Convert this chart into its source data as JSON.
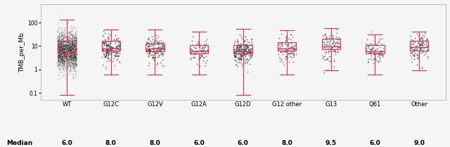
{
  "categories": [
    "WT",
    "G12C",
    "G12V",
    "G12A",
    "G12D",
    "G12 other",
    "G13",
    "Q61",
    "Other"
  ],
  "medians": [
    6.0,
    8.0,
    8.0,
    6.0,
    6.0,
    8.0,
    9.5,
    6.0,
    9.0
  ],
  "ylabel": "TMB_per_Mb",
  "xlabel_median": "Median",
  "box_color": "#d04060",
  "beeswarm_color": "#222222",
  "background_color": "#f5f5f5",
  "ylim_log": [
    0.05,
    600
  ],
  "yticks": [
    0.1,
    1,
    10,
    100
  ],
  "box_stats": {
    "WT": {
      "q1": 5.0,
      "q3": 17.0,
      "median": 6.0,
      "whislo": 0.08,
      "whishi": 130.0
    },
    "G12C": {
      "q1": 6.5,
      "q3": 17.0,
      "median": 8.0,
      "whislo": 0.6,
      "whishi": 50.0
    },
    "G12V": {
      "q1": 6.0,
      "q3": 13.0,
      "median": 8.0,
      "whislo": 0.6,
      "whishi": 50.0
    },
    "G12A": {
      "q1": 5.0,
      "q3": 11.0,
      "median": 6.0,
      "whislo": 0.6,
      "whishi": 42.0
    },
    "G12D": {
      "q1": 5.0,
      "q3": 11.0,
      "median": 6.0,
      "whislo": 0.08,
      "whishi": 55.0
    },
    "G12 other": {
      "q1": 6.5,
      "q3": 15.0,
      "median": 8.0,
      "whislo": 0.6,
      "whishi": 48.0
    },
    "G13": {
      "q1": 7.5,
      "q3": 21.0,
      "median": 9.5,
      "whislo": 0.9,
      "whishi": 58.0
    },
    "Q61": {
      "q1": 5.0,
      "q3": 11.0,
      "median": 6.0,
      "whislo": 0.6,
      "whishi": 32.0
    },
    "Other": {
      "q1": 6.5,
      "q3": 17.0,
      "median": 9.0,
      "whislo": 0.9,
      "whishi": 42.0
    }
  },
  "n_samples": {
    "WT": 2500,
    "G12C": 200,
    "G12V": 160,
    "G12A": 90,
    "G12D": 240,
    "G12 other": 100,
    "G13": 100,
    "Q61": 90,
    "Other": 120
  }
}
